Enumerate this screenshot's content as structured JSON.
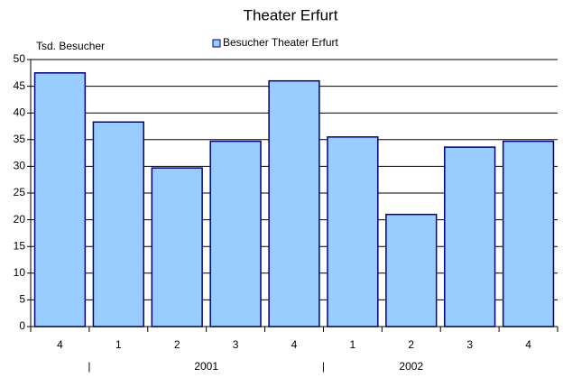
{
  "chart_data": {
    "type": "bar",
    "title": "Theater Erfurt",
    "y_label": "Tsd. Besucher",
    "categories": [
      "4",
      "1",
      "2",
      "3",
      "4",
      "1",
      "2",
      "3",
      "4"
    ],
    "groups": [
      "2001",
      "2002"
    ],
    "group_separator": "|",
    "series": [
      {
        "name": "Besucher Theater Erfurt",
        "color": "#99ccff",
        "values": [
          47.5,
          38.3,
          29.7,
          34.7,
          46.0,
          35.5,
          21.0,
          33.6,
          34.7
        ]
      }
    ],
    "ylim": [
      0,
      50
    ],
    "yticks": [
      0,
      5,
      10,
      15,
      20,
      25,
      30,
      35,
      40,
      45,
      50
    ],
    "grid": true,
    "legend": "top"
  }
}
